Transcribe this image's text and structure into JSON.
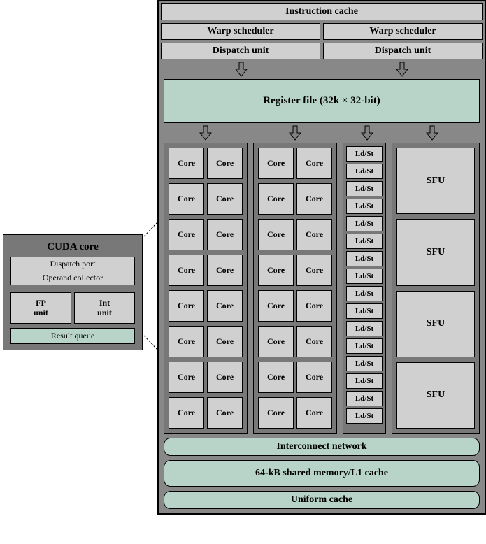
{
  "type": "block-diagram",
  "title_context": "GPU Streaming Multiprocessor architecture (NVIDIA Fermi-style)",
  "colors": {
    "container_bg": "#888888",
    "block_bg": "#787878",
    "cell_bg": "#d0d0d0",
    "accent_bg": "#b8d4c8",
    "border": "#000000",
    "arrow_fill": "#808080",
    "arrow_stroke": "#000000",
    "page_bg": "#ffffff"
  },
  "typography": {
    "font_family": "Times New Roman",
    "title_size_pt": 14,
    "cell_size_pt": 12,
    "weight": "bold"
  },
  "top": {
    "instruction_cache": "Instruction cache",
    "warp_scheduler": "Warp scheduler",
    "dispatch_unit": "Dispatch unit"
  },
  "register_file": "Register file (32k × 32-bit)",
  "core_label": "Core",
  "core_rows_per_block": 8,
  "core_cols_per_row": 2,
  "core_blocks": 2,
  "ldst": {
    "label": "Ld/St",
    "count": 16
  },
  "sfu": {
    "label": "SFU",
    "count": 4
  },
  "bottom": {
    "interconnect": "Interconnect network",
    "shared_memory": "64-kB shared memory/L1 cache",
    "uniform_cache": "Uniform cache"
  },
  "cuda_core": {
    "title": "CUDA core",
    "dispatch_port": "Dispatch port",
    "operand_collector": "Operand collector",
    "fp_unit": "FP\nunit",
    "int_unit": "Int\nunit",
    "result_queue": "Result queue"
  }
}
